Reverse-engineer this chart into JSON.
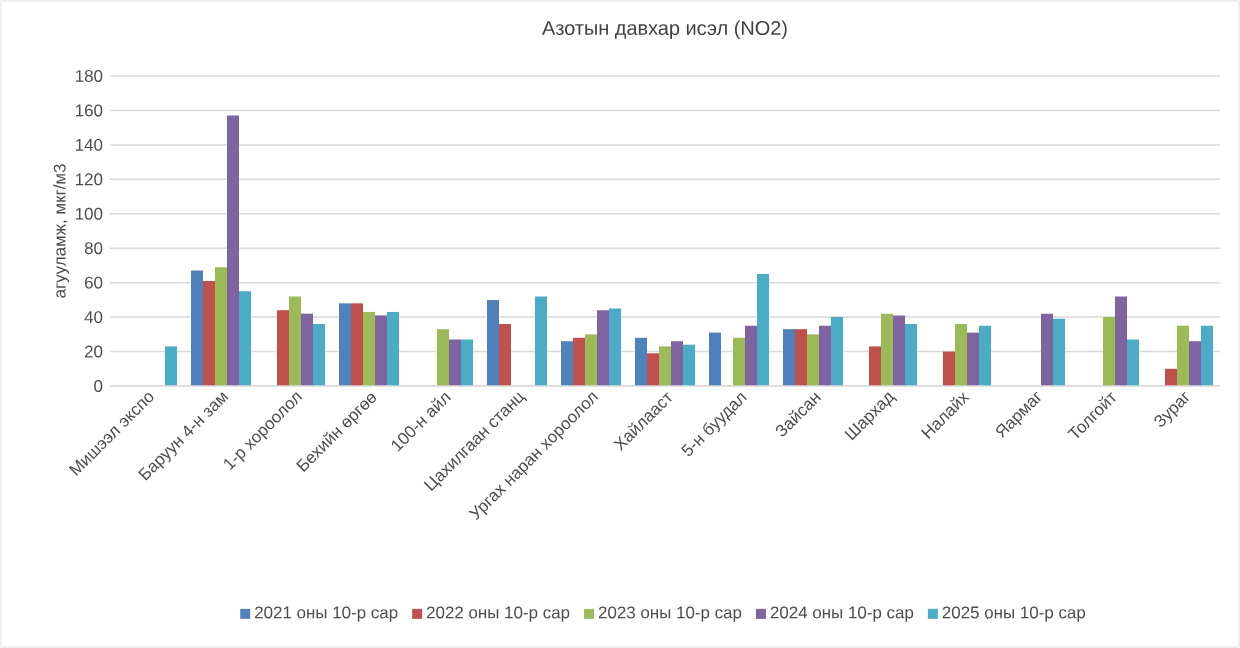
{
  "chart_data": {
    "type": "bar",
    "title": "Азотын давхар исэл (NO2)",
    "ylabel": "агууламж, мкг/м3",
    "categories": [
      "Мишээл экспо",
      "Баруун 4-н зам",
      "1-р хороолол",
      "Бехийн өргөө",
      "100-н айл",
      "Цахилгаан станц",
      "Ургах наран хороолол",
      "Хайлааст",
      "5-н буудал",
      "Зайсан",
      "Шархад",
      "Налайх",
      "Яармаг",
      "Толгойт",
      "Зураг"
    ],
    "series": [
      {
        "name": "2021 оны 10-р сар",
        "color": "#4f81bd",
        "values": [
          null,
          67,
          null,
          48,
          null,
          50,
          26,
          28,
          31,
          33,
          null,
          null,
          null,
          null,
          null
        ]
      },
      {
        "name": "2022 оны 10-р сар",
        "color": "#c0504d",
        "values": [
          null,
          61,
          44,
          48,
          null,
          36,
          28,
          19,
          null,
          33,
          23,
          20,
          null,
          null,
          10
        ]
      },
      {
        "name": "2023 оны 10-р сар",
        "color": "#9bbb59",
        "values": [
          null,
          69,
          52,
          43,
          33,
          null,
          30,
          23,
          28,
          30,
          42,
          36,
          null,
          40,
          35
        ]
      },
      {
        "name": "2024 оны 10-р сар",
        "color": "#8064a2",
        "values": [
          null,
          157,
          42,
          41,
          27,
          null,
          44,
          26,
          35,
          35,
          41,
          31,
          42,
          52,
          26
        ]
      },
      {
        "name": "2025 оны 10-р сар",
        "color": "#4bacc6",
        "values": [
          23,
          55,
          36,
          43,
          27,
          52,
          45,
          24,
          65,
          40,
          36,
          35,
          39,
          27,
          35
        ]
      }
    ],
    "ylim": [
      0,
      180
    ],
    "yticks": [
      0,
      20,
      40,
      60,
      80,
      100,
      120,
      140,
      160,
      180
    ],
    "grid": "y",
    "legend": "bottom"
  }
}
